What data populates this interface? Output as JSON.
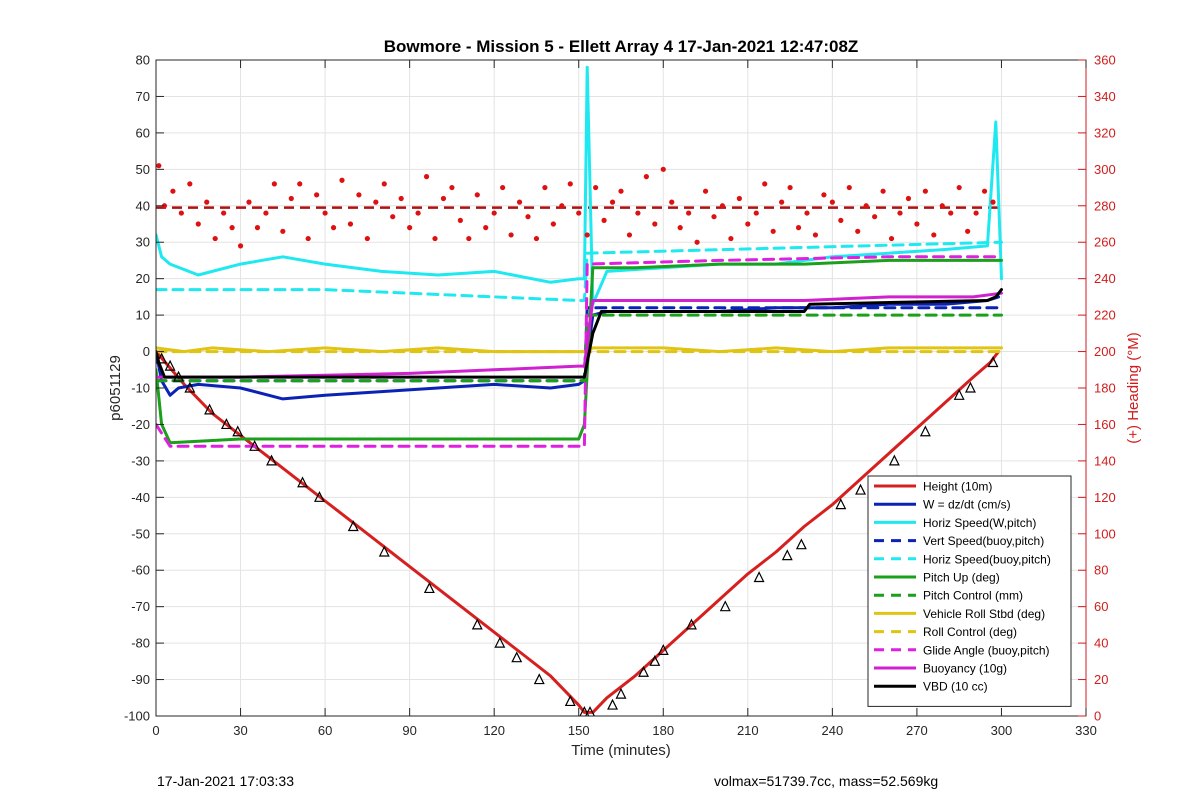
{
  "figure": {
    "title": "Bowmore - Mission 5 - Ellett Array 4 17-Jan-2021 12:47:08Z",
    "footer_left": "17-Jan-2021 17:03:33",
    "footer_right": "volmax=51739.7cc, mass=52.569kg"
  },
  "chart_data": {
    "type": "line",
    "title": "Bowmore - Mission 5 - Ellett Array 4 17-Jan-2021 12:47:08Z",
    "xlabel": "Time (minutes)",
    "ylabel": "p6051129",
    "y2label": "(+) Heading (°M)",
    "xlim": [
      0,
      330
    ],
    "ylim": [
      -100,
      80
    ],
    "y2lim": [
      0,
      360
    ],
    "xticks": [
      0,
      30,
      60,
      90,
      120,
      150,
      180,
      210,
      240,
      270,
      300,
      330
    ],
    "yticks": [
      -100,
      -90,
      -80,
      -70,
      -60,
      -50,
      -40,
      -30,
      -20,
      -10,
      0,
      10,
      20,
      30,
      40,
      50,
      60,
      70,
      80
    ],
    "y2ticks": [
      0,
      20,
      40,
      60,
      80,
      100,
      120,
      140,
      160,
      180,
      200,
      220,
      240,
      260,
      280,
      300,
      320,
      340,
      360
    ],
    "grid": true,
    "legend_position": "bottom-right",
    "colors": {
      "height": "#d62020",
      "w": "#0a23b4",
      "horiz": "#1ee8f0",
      "pitch": "#1aa01a",
      "roll": "#e0c414",
      "glide": "#e020e0",
      "buoyancy": "#d020d0",
      "vbd": "#000000",
      "heading": "#dd1111",
      "heading_mean": "#b01010",
      "right_axis": "#d21c1c"
    },
    "series": [
      {
        "name": "Height (10m)",
        "axis": "left",
        "style": "solid",
        "color": "#d62020",
        "x": [
          0,
          10,
          20,
          30,
          40,
          50,
          60,
          70,
          80,
          90,
          100,
          110,
          120,
          130,
          140,
          150,
          152,
          155,
          160,
          170,
          180,
          190,
          200,
          210,
          220,
          230,
          240,
          250,
          260,
          270,
          280,
          290,
          296,
          299
        ],
        "y": [
          0,
          -9,
          -17,
          -23,
          -29,
          -35,
          -41,
          -47,
          -53,
          -59,
          -65,
          -71,
          -77,
          -83,
          -89,
          -97,
          -99,
          -99,
          -95,
          -89,
          -82,
          -75,
          -68,
          -61,
          -55,
          -48,
          -42,
          -35,
          -28,
          -21,
          -14,
          -7,
          -3,
          0
        ]
      },
      {
        "name": "W = dz/dt (cm/s)",
        "axis": "left",
        "style": "solid",
        "color": "#0a23b4",
        "x": [
          0,
          2,
          5,
          8,
          15,
          30,
          45,
          60,
          80,
          100,
          120,
          140,
          150,
          152,
          155,
          160,
          180,
          200,
          220,
          240,
          260,
          280,
          295,
          299
        ],
        "y": [
          0,
          -8,
          -12,
          -10,
          -9,
          -10,
          -13,
          -12,
          -11,
          -10,
          -9,
          -10,
          -9,
          -8,
          10,
          11,
          11,
          11,
          12,
          12,
          13,
          13,
          14,
          15
        ]
      },
      {
        "name": "Horiz Speed(W,pitch)",
        "axis": "left",
        "style": "solid",
        "color": "#1ee8f0",
        "x": [
          0,
          2,
          5,
          15,
          30,
          45,
          60,
          80,
          100,
          120,
          140,
          150,
          152,
          153,
          155,
          160,
          180,
          200,
          220,
          240,
          260,
          280,
          295,
          298,
          300
        ],
        "y": [
          32,
          26,
          24,
          21,
          24,
          26,
          24,
          22,
          21,
          22,
          19,
          20,
          20,
          78,
          13,
          22,
          23,
          24,
          24,
          26,
          27,
          28,
          29,
          63,
          20
        ]
      },
      {
        "name": "Vert Speed(buoy,pitch)",
        "axis": "left",
        "style": "dashed",
        "color": "#0a23b4",
        "x": [
          0,
          152,
          153,
          300
        ],
        "y": [
          -8,
          -8,
          12,
          12
        ]
      },
      {
        "name": "Horiz Speed(buoy,pitch)",
        "axis": "left",
        "style": "dashed",
        "color": "#1ee8f0",
        "x": [
          0,
          60,
          150,
          152,
          153,
          300
        ],
        "y": [
          17,
          17,
          14,
          14,
          27,
          30
        ]
      },
      {
        "name": "Pitch Up (deg)",
        "axis": "left",
        "style": "solid",
        "color": "#1aa01a",
        "x": [
          0,
          2,
          5,
          30,
          60,
          90,
          120,
          150,
          152,
          155,
          170,
          200,
          230,
          260,
          290,
          300
        ],
        "y": [
          -5,
          -20,
          -25,
          -24,
          -24,
          -24,
          -24,
          -24,
          -20,
          23,
          23,
          24,
          24,
          25,
          25,
          25
        ]
      },
      {
        "name": "Pitch Control (mm)",
        "axis": "left",
        "style": "dashed",
        "color": "#1aa01a",
        "x": [
          0,
          152,
          153,
          300
        ],
        "y": [
          -8,
          -8,
          10,
          10
        ]
      },
      {
        "name": "Vehicle Roll Stbd (deg)",
        "axis": "left",
        "style": "solid",
        "color": "#e0c414",
        "x": [
          0,
          10,
          20,
          40,
          60,
          80,
          100,
          120,
          140,
          150,
          152,
          155,
          180,
          200,
          220,
          240,
          260,
          280,
          300
        ],
        "y": [
          1,
          0,
          1,
          0,
          1,
          0,
          1,
          0,
          0,
          0,
          0,
          1,
          1,
          0,
          1,
          0,
          1,
          1,
          1
        ]
      },
      {
        "name": "Roll Control (deg)",
        "axis": "left",
        "style": "dashed",
        "color": "#e0c414",
        "x": [
          0,
          60,
          120,
          150,
          155,
          200,
          250,
          300
        ],
        "y": [
          0,
          0,
          0,
          0,
          0,
          0,
          0,
          0
        ]
      },
      {
        "name": "Glide Angle (buoy,pitch)",
        "axis": "left",
        "style": "dashed",
        "color": "#e020e0",
        "x": [
          0,
          5,
          60,
          120,
          150,
          152,
          153,
          200,
          260,
          300
        ],
        "y": [
          -20,
          -26,
          -26,
          -26,
          -26,
          -26,
          24,
          25,
          26,
          26
        ]
      },
      {
        "name": "Buoyancy (10g)",
        "axis": "left",
        "style": "solid",
        "color": "#d020d0",
        "x": [
          0,
          30,
          60,
          90,
          120,
          150,
          152,
          155,
          200,
          230,
          260,
          290,
          300
        ],
        "y": [
          -7,
          -7,
          -6.5,
          -6,
          -5,
          -4,
          -4,
          14,
          14,
          14,
          15,
          15,
          16
        ]
      },
      {
        "name": "VBD (10 cc)",
        "axis": "left",
        "style": "solid",
        "color": "#000000",
        "x": [
          0,
          1,
          3,
          150,
          152,
          155,
          158,
          230,
          232,
          295,
          298,
          300
        ],
        "y": [
          0,
          -3,
          -7,
          -7,
          -7,
          5,
          11,
          11,
          13,
          14,
          15,
          17
        ]
      }
    ],
    "heading": {
      "axis": "right",
      "name": "Heading",
      "mean_line": 279,
      "x": [
        1,
        3,
        6,
        9,
        12,
        15,
        18,
        21,
        24,
        27,
        30,
        33,
        36,
        39,
        42,
        45,
        48,
        51,
        54,
        57,
        60,
        63,
        66,
        69,
        72,
        75,
        78,
        81,
        84,
        87,
        90,
        93,
        96,
        99,
        102,
        105,
        108,
        111,
        114,
        117,
        120,
        123,
        126,
        129,
        132,
        135,
        138,
        141,
        144,
        147,
        150,
        153,
        156,
        159,
        162,
        165,
        168,
        171,
        174,
        177,
        180,
        183,
        186,
        189,
        192,
        195,
        198,
        201,
        204,
        207,
        210,
        213,
        216,
        219,
        222,
        225,
        228,
        231,
        234,
        237,
        240,
        243,
        246,
        249,
        252,
        255,
        258,
        261,
        264,
        267,
        270,
        273,
        276,
        279,
        282,
        285,
        288,
        291,
        294,
        297
      ],
      "y": [
        302,
        280,
        288,
        276,
        292,
        270,
        282,
        262,
        276,
        268,
        258,
        282,
        268,
        276,
        292,
        266,
        284,
        292,
        262,
        286,
        276,
        268,
        294,
        270,
        286,
        262,
        282,
        292,
        274,
        284,
        268,
        276,
        296,
        262,
        284,
        290,
        272,
        262,
        286,
        268,
        276,
        290,
        264,
        282,
        274,
        262,
        290,
        270,
        280,
        292,
        276,
        264,
        290,
        272,
        282,
        288,
        264,
        276,
        296,
        270,
        300,
        282,
        268,
        276,
        260,
        288,
        274,
        280,
        262,
        284,
        270,
        276,
        292,
        266,
        282,
        290,
        268,
        276,
        264,
        286,
        282,
        272,
        290,
        266,
        280,
        274,
        288,
        262,
        276,
        284,
        270,
        288,
        264,
        280,
        276,
        290,
        266,
        276,
        288,
        282
      ]
    },
    "markers": {
      "name": "Height markers",
      "shape": "triangle",
      "x": [
        2,
        5,
        8,
        12,
        19,
        25,
        29,
        35,
        41,
        52,
        58,
        70,
        81,
        97,
        114,
        122,
        128,
        136,
        147,
        152,
        154,
        162,
        165,
        173,
        177,
        180,
        190,
        202,
        214,
        224,
        229,
        243,
        250,
        262,
        273,
        285,
        289,
        297
      ],
      "y": [
        -2,
        -4,
        -7,
        -10,
        -16,
        -20,
        -22,
        -26,
        -30,
        -36,
        -40,
        -48,
        -55,
        -65,
        -75,
        -80,
        -84,
        -90,
        -96,
        -99,
        -99,
        -97,
        -94,
        -88,
        -85,
        -82,
        -75,
        -70,
        -62,
        -56,
        -53,
        -42,
        -38,
        -30,
        -22,
        -12,
        -10,
        -3
      ]
    }
  }
}
